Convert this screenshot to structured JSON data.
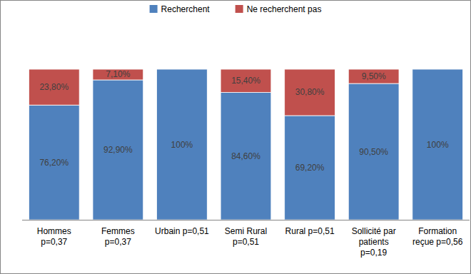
{
  "chart_data": {
    "type": "bar",
    "stacked": true,
    "orientation": "vertical",
    "categories": [
      "Hommes p=0,37",
      "Femmes p=0,37",
      "Urbain p=0,51",
      "Semi Rural p=0,51",
      "Rural p=0,51",
      "Sollicité par patients p=0,19",
      "Formation reçue p=0,56"
    ],
    "series": [
      {
        "name": "Recherchent",
        "color": "#4f81bd",
        "values": [
          76.2,
          92.9,
          100,
          84.6,
          69.2,
          90.5,
          100
        ],
        "value_labels": [
          "76,20%",
          "92,90%",
          "100%",
          "84,60%",
          "69,20%",
          "90,50%",
          "100%"
        ]
      },
      {
        "name": "Ne recherchent pas",
        "color": "#c0504d",
        "values": [
          23.8,
          7.1,
          0,
          15.4,
          30.8,
          9.5,
          0
        ],
        "value_labels": [
          "23,80%",
          "7,10%",
          null,
          "15,40%",
          "30,80%",
          "9,50%",
          null
        ]
      }
    ],
    "ylim": [
      0,
      100
    ],
    "data_labels": true,
    "tick_labels": "x",
    "legend": "top",
    "grid": false
  }
}
